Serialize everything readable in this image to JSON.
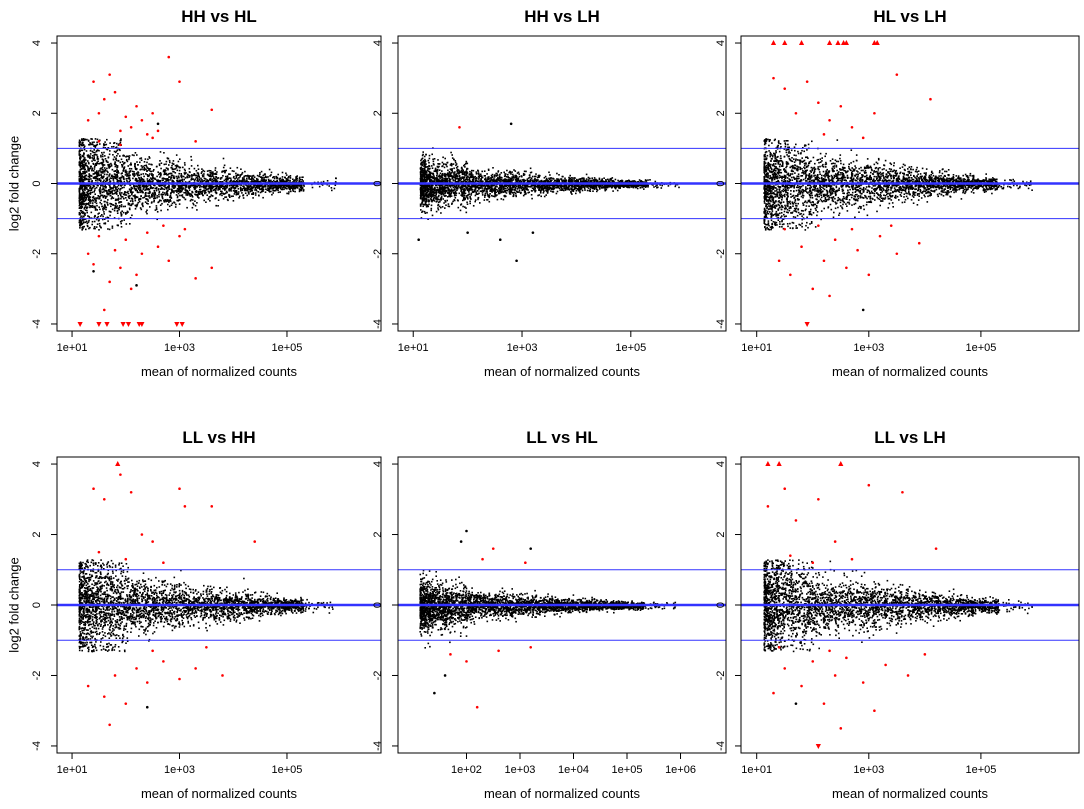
{
  "figure": {
    "ylabel": "log2 fold change",
    "xlabel": "mean of normalized counts"
  },
  "colors": {
    "sig": "#ff0000",
    "nonsig": "#000000",
    "line": "#3333ff",
    "frame": "#000000"
  },
  "chart_data": [
    {
      "type": "scatter",
      "title": "HH vs HL",
      "xlabel": "mean of normalized counts",
      "ylabel": "log2 fold change",
      "xscale": "log10",
      "xlim_log10": [
        0.72,
        6.75
      ],
      "ylim": [
        -4.2,
        4.2
      ],
      "xticks": [
        {
          "v": 1,
          "label": "1e+01"
        },
        {
          "v": 3,
          "label": "1e+03"
        },
        {
          "v": 5,
          "label": "1e+05"
        }
      ],
      "yticks": [
        -4,
        -2,
        0,
        2,
        4
      ],
      "hlines": [
        -1,
        0,
        1
      ],
      "spread": 0.5,
      "maxlog": 5.3,
      "sig_points": [
        [
          1.3,
          1.8
        ],
        [
          1.4,
          2.9
        ],
        [
          1.5,
          2.0
        ],
        [
          1.6,
          2.4
        ],
        [
          1.7,
          3.1
        ],
        [
          1.8,
          2.6
        ],
        [
          1.9,
          1.5
        ],
        [
          2.0,
          1.9
        ],
        [
          2.1,
          1.6
        ],
        [
          2.2,
          2.2
        ],
        [
          2.3,
          1.8
        ],
        [
          2.4,
          1.4
        ],
        [
          2.5,
          2.0
        ],
        [
          2.6,
          1.5
        ],
        [
          2.8,
          3.6
        ],
        [
          3.0,
          2.9
        ],
        [
          3.3,
          1.2
        ],
        [
          3.6,
          2.1
        ],
        [
          1.3,
          -2.0
        ],
        [
          1.4,
          -2.3
        ],
        [
          1.5,
          -1.5
        ],
        [
          1.6,
          -3.6
        ],
        [
          1.7,
          -2.8
        ],
        [
          1.8,
          -1.9
        ],
        [
          1.9,
          -2.4
        ],
        [
          2.0,
          -1.6
        ],
        [
          2.1,
          -3.0
        ],
        [
          2.2,
          -2.6
        ],
        [
          2.3,
          -2.0
        ],
        [
          2.4,
          -1.4
        ],
        [
          2.6,
          -1.8
        ],
        [
          2.8,
          -2.2
        ],
        [
          3.0,
          -1.5
        ],
        [
          3.3,
          -2.7
        ],
        [
          3.6,
          -2.4
        ],
        [
          1.5,
          1.2
        ],
        [
          1.9,
          1.1
        ],
        [
          2.5,
          1.3
        ],
        [
          2.7,
          -1.2
        ],
        [
          3.1,
          -1.3
        ]
      ],
      "nonsig_points": [
        [
          2.6,
          1.7
        ],
        [
          1.4,
          -2.5
        ],
        [
          2.2,
          -2.9
        ],
        [
          1.6,
          1.1
        ]
      ],
      "tri_up": [],
      "tri_down": [
        [
          1.15,
          -4
        ],
        [
          1.5,
          -4
        ],
        [
          1.65,
          -4
        ],
        [
          1.95,
          -4
        ],
        [
          2.05,
          -4
        ],
        [
          2.25,
          -4
        ],
        [
          2.3,
          -4
        ],
        [
          2.95,
          -4
        ],
        [
          3.05,
          -4
        ]
      ]
    },
    {
      "type": "scatter",
      "title": "HH vs LH",
      "xlabel": "mean of normalized counts",
      "ylabel": "log2 fold change",
      "xscale": "log10",
      "xlim_log10": [
        0.72,
        6.75
      ],
      "ylim": [
        -4.2,
        4.2
      ],
      "xticks": [
        {
          "v": 1,
          "label": "1e+01"
        },
        {
          "v": 3,
          "label": "1e+03"
        },
        {
          "v": 5,
          "label": "1e+05"
        }
      ],
      "yticks": [
        -4,
        -2,
        0,
        2,
        4
      ],
      "hlines": [
        -1,
        0,
        1
      ],
      "spread": 0.25,
      "maxlog": 5.3,
      "sig_points": [
        [
          1.85,
          1.6
        ]
      ],
      "nonsig_points": [
        [
          2.8,
          1.7
        ],
        [
          2.9,
          -2.2
        ],
        [
          2.6,
          -1.6
        ],
        [
          2.0,
          -1.4
        ],
        [
          1.1,
          -1.6
        ],
        [
          3.2,
          -1.4
        ]
      ],
      "tri_up": [],
      "tri_down": []
    },
    {
      "type": "scatter",
      "title": "HL vs LH",
      "xlabel": "mean of normalized counts",
      "ylabel": "log2 fold change",
      "xscale": "log10",
      "xlim_log10": [
        0.72,
        6.75
      ],
      "ylim": [
        -4.2,
        4.2
      ],
      "xticks": [
        {
          "v": 1,
          "label": "1e+01"
        },
        {
          "v": 3,
          "label": "1e+03"
        },
        {
          "v": 5,
          "label": "1e+05"
        }
      ],
      "yticks": [
        -4,
        -2,
        0,
        2,
        4
      ],
      "hlines": [
        -1,
        0,
        1
      ],
      "spread": 0.5,
      "maxlog": 5.3,
      "sig_points": [
        [
          1.3,
          3.0
        ],
        [
          1.5,
          2.7
        ],
        [
          1.7,
          2.0
        ],
        [
          1.9,
          2.9
        ],
        [
          2.1,
          2.3
        ],
        [
          2.3,
          1.8
        ],
        [
          2.5,
          2.2
        ],
        [
          2.7,
          1.6
        ],
        [
          3.1,
          2.0
        ],
        [
          3.5,
          3.1
        ],
        [
          4.1,
          2.4
        ],
        [
          2.2,
          1.4
        ],
        [
          2.9,
          1.3
        ],
        [
          1.4,
          -2.2
        ],
        [
          1.6,
          -2.6
        ],
        [
          1.8,
          -1.8
        ],
        [
          2.0,
          -3.0
        ],
        [
          2.2,
          -2.2
        ],
        [
          2.4,
          -1.6
        ],
        [
          2.6,
          -2.4
        ],
        [
          2.8,
          -1.9
        ],
        [
          3.0,
          -2.6
        ],
        [
          3.2,
          -1.5
        ],
        [
          3.5,
          -2.0
        ],
        [
          3.9,
          -1.7
        ],
        [
          1.5,
          -1.3
        ],
        [
          2.1,
          -1.2
        ],
        [
          2.7,
          -1.3
        ],
        [
          3.4,
          -1.2
        ],
        [
          2.3,
          -3.2
        ]
      ],
      "nonsig_points": [
        [
          2.9,
          -3.6
        ]
      ],
      "tri_up": [
        [
          1.3,
          4
        ],
        [
          1.5,
          4
        ],
        [
          1.8,
          4
        ],
        [
          2.3,
          4
        ],
        [
          2.45,
          4
        ],
        [
          2.55,
          4
        ],
        [
          2.6,
          4
        ],
        [
          3.1,
          4
        ],
        [
          3.15,
          4
        ]
      ],
      "tri_down": [
        [
          1.9,
          -4
        ]
      ]
    },
    {
      "type": "scatter",
      "title": "LL vs HH",
      "xlabel": "mean of normalized counts",
      "ylabel": "log2 fold change",
      "xscale": "log10",
      "xlim_log10": [
        0.72,
        6.75
      ],
      "ylim": [
        -4.2,
        4.2
      ],
      "xticks": [
        {
          "v": 1,
          "label": "1e+01"
        },
        {
          "v": 3,
          "label": "1e+03"
        },
        {
          "v": 5,
          "label": "1e+05"
        }
      ],
      "yticks": [
        -4,
        -2,
        0,
        2,
        4
      ],
      "hlines": [
        -1,
        0,
        1
      ],
      "spread": 0.5,
      "maxlog": 5.3,
      "sig_points": [
        [
          1.4,
          3.3
        ],
        [
          1.6,
          3.0
        ],
        [
          1.9,
          3.7
        ],
        [
          2.1,
          3.2
        ],
        [
          2.3,
          2.0
        ],
        [
          2.5,
          1.8
        ],
        [
          3.0,
          3.3
        ],
        [
          3.1,
          2.8
        ],
        [
          3.6,
          2.8
        ],
        [
          4.4,
          1.8
        ],
        [
          1.5,
          1.5
        ],
        [
          2.0,
          1.3
        ],
        [
          2.7,
          1.2
        ],
        [
          1.3,
          -2.3
        ],
        [
          1.6,
          -2.6
        ],
        [
          1.8,
          -2.0
        ],
        [
          2.0,
          -2.8
        ],
        [
          2.2,
          -1.8
        ],
        [
          2.4,
          -2.2
        ],
        [
          2.7,
          -1.6
        ],
        [
          3.0,
          -2.1
        ],
        [
          3.3,
          -1.8
        ],
        [
          3.8,
          -2.0
        ],
        [
          1.7,
          -3.4
        ],
        [
          2.5,
          -1.3
        ],
        [
          3.5,
          -1.2
        ]
      ],
      "nonsig_points": [
        [
          2.4,
          -2.9
        ]
      ],
      "tri_up": [
        [
          1.85,
          4
        ]
      ],
      "tri_down": []
    },
    {
      "type": "scatter",
      "title": "LL vs HL",
      "xlabel": "mean of normalized counts",
      "ylabel": "log2 fold change",
      "xscale": "log10",
      "xlim_log10": [
        0.72,
        6.85
      ],
      "ylim": [
        -4.2,
        4.2
      ],
      "xticks": [
        {
          "v": 2,
          "label": "1e+02"
        },
        {
          "v": 3,
          "label": "1e+03"
        },
        {
          "v": 4,
          "label": "1e+04"
        },
        {
          "v": 5,
          "label": "1e+05"
        },
        {
          "v": 6,
          "label": "1e+06"
        }
      ],
      "yticks": [
        -4,
        -2,
        0,
        2,
        4
      ],
      "hlines": [
        -1,
        0,
        1
      ],
      "spread": 0.25,
      "maxlog": 5.3,
      "sig_points": [
        [
          2.3,
          1.3
        ],
        [
          2.5,
          1.6
        ],
        [
          3.1,
          1.2
        ],
        [
          1.7,
          -1.4
        ],
        [
          2.0,
          -1.6
        ],
        [
          2.2,
          -2.9
        ],
        [
          2.6,
          -1.3
        ],
        [
          3.2,
          -1.2
        ]
      ],
      "nonsig_points": [
        [
          2.0,
          2.1
        ],
        [
          1.9,
          1.8
        ],
        [
          3.2,
          1.6
        ],
        [
          1.4,
          -2.5
        ],
        [
          1.6,
          -2.0
        ]
      ],
      "tri_up": [],
      "tri_down": []
    },
    {
      "type": "scatter",
      "title": "LL vs LH",
      "xlabel": "mean of normalized counts",
      "ylabel": "log2 fold change",
      "xscale": "log10",
      "xlim_log10": [
        0.72,
        6.75
      ],
      "ylim": [
        -4.2,
        4.2
      ],
      "xticks": [
        {
          "v": 1,
          "label": "1e+01"
        },
        {
          "v": 3,
          "label": "1e+03"
        },
        {
          "v": 5,
          "label": "1e+05"
        }
      ],
      "yticks": [
        -4,
        -2,
        0,
        2,
        4
      ],
      "hlines": [
        -1,
        0,
        1
      ],
      "spread": 0.5,
      "maxlog": 5.3,
      "sig_points": [
        [
          1.2,
          2.8
        ],
        [
          1.5,
          3.3
        ],
        [
          1.7,
          2.4
        ],
        [
          2.1,
          3.0
        ],
        [
          2.4,
          1.8
        ],
        [
          3.0,
          3.4
        ],
        [
          3.6,
          3.2
        ],
        [
          4.2,
          1.6
        ],
        [
          1.6,
          1.4
        ],
        [
          2.0,
          1.2
        ],
        [
          2.7,
          1.3
        ],
        [
          1.3,
          -2.5
        ],
        [
          1.5,
          -1.8
        ],
        [
          1.8,
          -2.3
        ],
        [
          2.0,
          -1.6
        ],
        [
          2.2,
          -2.8
        ],
        [
          2.4,
          -2.0
        ],
        [
          2.6,
          -1.5
        ],
        [
          2.9,
          -2.2
        ],
        [
          3.1,
          -3.0
        ],
        [
          3.3,
          -1.7
        ],
        [
          3.7,
          -2.0
        ],
        [
          4.0,
          -1.4
        ],
        [
          2.5,
          -3.5
        ],
        [
          1.4,
          -1.2
        ],
        [
          2.3,
          -1.3
        ]
      ],
      "nonsig_points": [
        [
          1.7,
          -2.8
        ]
      ],
      "tri_up": [
        [
          1.2,
          4
        ],
        [
          1.4,
          4
        ],
        [
          2.5,
          4
        ]
      ],
      "tri_down": [
        [
          2.1,
          -4
        ]
      ]
    }
  ]
}
